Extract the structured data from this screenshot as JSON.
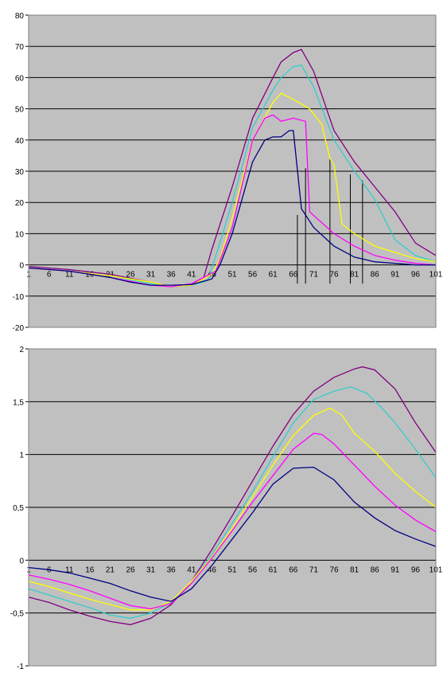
{
  "chart_data": [
    {
      "type": "line",
      "ylim": [
        -20,
        80
      ],
      "y_ticks": [
        "-20",
        "-10",
        "0",
        "10",
        "20",
        "30",
        "40",
        "50",
        "60",
        "70",
        "80"
      ],
      "x_ticks": [
        "1",
        "6",
        "11",
        "16",
        "21",
        "26",
        "31",
        "36",
        "41",
        "46",
        "51",
        "56",
        "61",
        "66",
        "71",
        "76",
        "81",
        "86",
        "91",
        "96",
        "101"
      ],
      "grid": true,
      "series": [
        {
          "color": "#800080",
          "points": [
            [
              1,
              -0.5
            ],
            [
              11,
              -1.5
            ],
            [
              21,
              -3
            ],
            [
              31,
              -5.5
            ],
            [
              36,
              -7
            ],
            [
              41,
              -6.5
            ],
            [
              44,
              -4
            ],
            [
              46,
              5
            ],
            [
              51,
              25
            ],
            [
              56,
              47
            ],
            [
              61,
              60
            ],
            [
              63,
              65
            ],
            [
              66,
              68
            ],
            [
              68,
              69
            ],
            [
              71,
              62
            ],
            [
              76,
              43
            ],
            [
              81,
              33
            ],
            [
              86,
              25
            ],
            [
              91,
              17
            ],
            [
              96,
              7
            ],
            [
              101,
              3
            ]
          ]
        },
        {
          "color": "#33cccc",
          "points": [
            [
              1,
              -1
            ],
            [
              11,
              -2
            ],
            [
              21,
              -3.5
            ],
            [
              31,
              -6
            ],
            [
              36,
              -7
            ],
            [
              41,
              -6.5
            ],
            [
              45,
              -5
            ],
            [
              47,
              3
            ],
            [
              51,
              20
            ],
            [
              56,
              44
            ],
            [
              61,
              56
            ],
            [
              63,
              60
            ],
            [
              66,
              63.5
            ],
            [
              68,
              64
            ],
            [
              71,
              57
            ],
            [
              76,
              40
            ],
            [
              81,
              30
            ],
            [
              86,
              21
            ],
            [
              91,
              8
            ],
            [
              96,
              3
            ],
            [
              101,
              1
            ]
          ]
        },
        {
          "color": "#ffff00",
          "points": [
            [
              1,
              -1
            ],
            [
              11,
              -2
            ],
            [
              21,
              -3.5
            ],
            [
              31,
              -5.5
            ],
            [
              36,
              -7
            ],
            [
              41,
              -6.5
            ],
            [
              46,
              -3
            ],
            [
              48,
              2
            ],
            [
              51,
              15
            ],
            [
              56,
              40
            ],
            [
              61,
              52
            ],
            [
              63,
              55
            ],
            [
              66,
              53
            ],
            [
              70,
              50
            ],
            [
              73,
              45
            ],
            [
              75,
              34
            ],
            [
              76,
              32
            ],
            [
              78,
              13
            ],
            [
              81,
              10
            ],
            [
              86,
              6
            ],
            [
              91,
              4
            ],
            [
              96,
              2
            ],
            [
              101,
              1
            ]
          ]
        },
        {
          "color": "#ff00ff",
          "points": [
            [
              1,
              -1
            ],
            [
              11,
              -2
            ],
            [
              21,
              -4
            ],
            [
              31,
              -6.5
            ],
            [
              36,
              -7
            ],
            [
              41,
              -6
            ],
            [
              47,
              -2
            ],
            [
              49,
              5
            ],
            [
              51,
              12
            ],
            [
              56,
              40
            ],
            [
              59,
              47
            ],
            [
              61,
              48
            ],
            [
              63,
              46
            ],
            [
              66,
              47
            ],
            [
              69,
              46
            ],
            [
              70,
              17
            ],
            [
              76,
              10
            ],
            [
              81,
              6
            ],
            [
              86,
              3
            ],
            [
              91,
              1.5
            ],
            [
              96,
              0.5
            ],
            [
              101,
              0
            ]
          ]
        },
        {
          "color": "#000080",
          "points": [
            [
              1,
              -1
            ],
            [
              11,
              -2
            ],
            [
              21,
              -4
            ],
            [
              26,
              -5.5
            ],
            [
              31,
              -6.5
            ],
            [
              36,
              -6.5
            ],
            [
              41,
              -6.3
            ],
            [
              46,
              -4.5
            ],
            [
              48,
              0
            ],
            [
              51,
              10
            ],
            [
              56,
              33
            ],
            [
              59,
              40
            ],
            [
              61,
              41
            ],
            [
              63,
              41
            ],
            [
              65,
              43
            ],
            [
              66,
              43
            ],
            [
              68,
              18
            ],
            [
              71,
              12
            ],
            [
              76,
              6
            ],
            [
              81,
              2.5
            ],
            [
              86,
              1
            ],
            [
              91,
              0.5
            ],
            [
              96,
              0
            ],
            [
              101,
              0
            ]
          ]
        }
      ],
      "markers": [
        {
          "x": 67,
          "y_top": 16,
          "y_bottom": -6
        },
        {
          "x": 69,
          "y_top": 31,
          "y_bottom": -6
        },
        {
          "x": 75,
          "y_top": 34,
          "y_bottom": -6
        },
        {
          "x": 80,
          "y_top": 29,
          "y_bottom": -6
        },
        {
          "x": 83,
          "y_top": 27,
          "y_bottom": -6
        }
      ]
    },
    {
      "type": "line",
      "ylim": [
        -1,
        2
      ],
      "y_ticks": [
        "-1",
        "-0,5",
        "0",
        "0,5",
        "1",
        "1,5",
        "2"
      ],
      "x_ticks": [
        "1",
        "6",
        "11",
        "16",
        "21",
        "26",
        "31",
        "36",
        "41",
        "46",
        "51",
        "56",
        "61",
        "66",
        "71",
        "76",
        "81",
        "86",
        "91",
        "96",
        "101"
      ],
      "grid": true,
      "series": [
        {
          "color": "#800080",
          "points": [
            [
              1,
              -0.35
            ],
            [
              6,
              -0.4
            ],
            [
              11,
              -0.47
            ],
            [
              16,
              -0.53
            ],
            [
              21,
              -0.58
            ],
            [
              26,
              -0.61
            ],
            [
              31,
              -0.55
            ],
            [
              36,
              -0.42
            ],
            [
              41,
              -0.2
            ],
            [
              46,
              0.1
            ],
            [
              51,
              0.42
            ],
            [
              56,
              0.75
            ],
            [
              61,
              1.08
            ],
            [
              66,
              1.38
            ],
            [
              71,
              1.6
            ],
            [
              76,
              1.73
            ],
            [
              81,
              1.81
            ],
            [
              83,
              1.83
            ],
            [
              86,
              1.8
            ],
            [
              91,
              1.62
            ],
            [
              96,
              1.3
            ],
            [
              101,
              1.02
            ]
          ]
        },
        {
          "color": "#33cccc",
          "points": [
            [
              1,
              -0.27
            ],
            [
              6,
              -0.33
            ],
            [
              11,
              -0.39
            ],
            [
              16,
              -0.45
            ],
            [
              21,
              -0.52
            ],
            [
              26,
              -0.55
            ],
            [
              31,
              -0.5
            ],
            [
              36,
              -0.4
            ],
            [
              41,
              -0.2
            ],
            [
              46,
              0.05
            ],
            [
              51,
              0.35
            ],
            [
              56,
              0.65
            ],
            [
              61,
              0.98
            ],
            [
              66,
              1.3
            ],
            [
              71,
              1.52
            ],
            [
              76,
              1.6
            ],
            [
              80,
              1.64
            ],
            [
              84,
              1.58
            ],
            [
              88,
              1.43
            ],
            [
              91,
              1.3
            ],
            [
              96,
              1.05
            ],
            [
              101,
              0.78
            ]
          ]
        },
        {
          "color": "#ffff00",
          "points": [
            [
              1,
              -0.2
            ],
            [
              6,
              -0.25
            ],
            [
              11,
              -0.31
            ],
            [
              16,
              -0.37
            ],
            [
              21,
              -0.42
            ],
            [
              26,
              -0.47
            ],
            [
              31,
              -0.47
            ],
            [
              36,
              -0.39
            ],
            [
              41,
              -0.2
            ],
            [
              46,
              0.03
            ],
            [
              51,
              0.3
            ],
            [
              56,
              0.6
            ],
            [
              61,
              0.9
            ],
            [
              66,
              1.18
            ],
            [
              71,
              1.37
            ],
            [
              75,
              1.44
            ],
            [
              78,
              1.37
            ],
            [
              81,
              1.2
            ],
            [
              86,
              1.03
            ],
            [
              91,
              0.82
            ],
            [
              96,
              0.65
            ],
            [
              101,
              0.5
            ]
          ]
        },
        {
          "color": "#ff00ff",
          "points": [
            [
              1,
              -0.14
            ],
            [
              6,
              -0.18
            ],
            [
              11,
              -0.23
            ],
            [
              16,
              -0.29
            ],
            [
              21,
              -0.36
            ],
            [
              26,
              -0.43
            ],
            [
              31,
              -0.46
            ],
            [
              36,
              -0.41
            ],
            [
              41,
              -0.22
            ],
            [
              46,
              0.02
            ],
            [
              51,
              0.28
            ],
            [
              56,
              0.55
            ],
            [
              61,
              0.8
            ],
            [
              66,
              1.05
            ],
            [
              71,
              1.2
            ],
            [
              73,
              1.19
            ],
            [
              76,
              1.1
            ],
            [
              81,
              0.9
            ],
            [
              86,
              0.7
            ],
            [
              91,
              0.52
            ],
            [
              96,
              0.38
            ],
            [
              101,
              0.27
            ]
          ]
        },
        {
          "color": "#000080",
          "points": [
            [
              1,
              -0.07
            ],
            [
              6,
              -0.09
            ],
            [
              11,
              -0.12
            ],
            [
              16,
              -0.17
            ],
            [
              21,
              -0.22
            ],
            [
              26,
              -0.29
            ],
            [
              31,
              -0.35
            ],
            [
              36,
              -0.39
            ],
            [
              41,
              -0.27
            ],
            [
              46,
              -0.05
            ],
            [
              51,
              0.2
            ],
            [
              56,
              0.45
            ],
            [
              61,
              0.72
            ],
            [
              66,
              0.87
            ],
            [
              71,
              0.88
            ],
            [
              76,
              0.76
            ],
            [
              81,
              0.55
            ],
            [
              86,
              0.4
            ],
            [
              91,
              0.28
            ],
            [
              96,
              0.2
            ],
            [
              101,
              0.13
            ]
          ]
        }
      ]
    }
  ]
}
